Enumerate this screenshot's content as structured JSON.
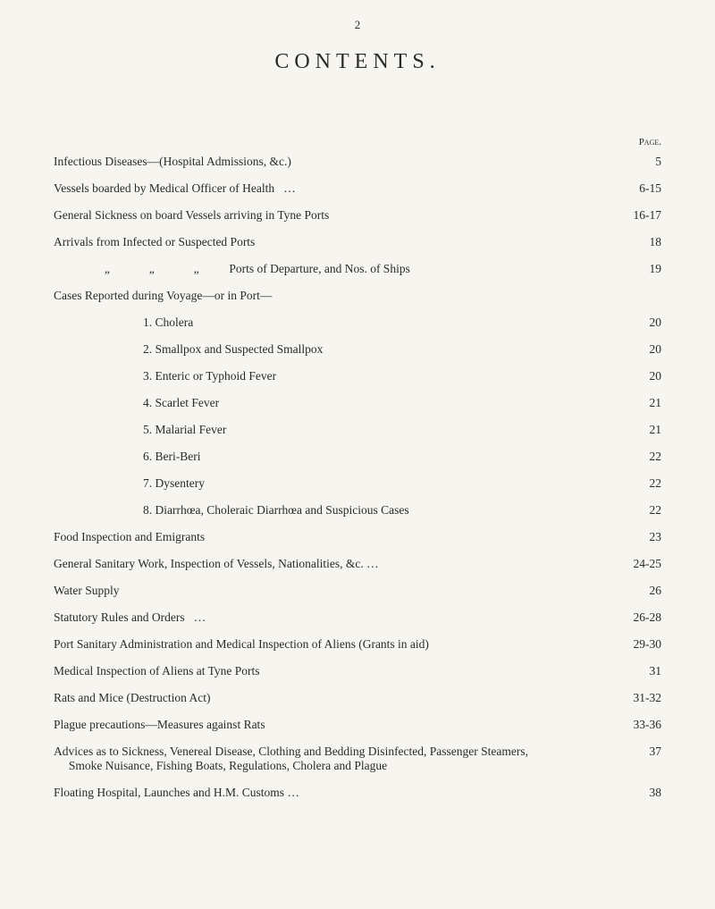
{
  "page_number": "2",
  "title": "CONTENTS.",
  "page_heading": "Page.",
  "rows": [
    {
      "label": "Infectious Diseases—(Hospital Admissions, &c.)",
      "page": "5",
      "indent": ""
    },
    {
      "label": "Vessels boarded by Medical Officer of Health   …",
      "page": "6-15",
      "indent": ""
    },
    {
      "label": "General Sickness on board Vessels arriving in Tyne Ports",
      "page": "16-17",
      "indent": ""
    },
    {
      "label": "Arrivals from Infected or Suspected Ports",
      "page": "18",
      "indent": ""
    },
    {
      "label": "     „             „             „          Ports of Departure, and Nos. of Ships",
      "page": "19",
      "indent": "indent-quote"
    },
    {
      "label": "Cases Reported during Voyage—or in Port—",
      "page": "",
      "indent": ""
    },
    {
      "label": "1. Cholera",
      "page": "20",
      "indent": "indent-1"
    },
    {
      "label": "2. Smallpox and Suspected Smallpox",
      "page": "20",
      "indent": "indent-1"
    },
    {
      "label": "3. Enteric or Typhoid Fever",
      "page": "20",
      "indent": "indent-1"
    },
    {
      "label": "4. Scarlet Fever",
      "page": "21",
      "indent": "indent-1"
    },
    {
      "label": "5. Malarial Fever",
      "page": "21",
      "indent": "indent-1"
    },
    {
      "label": "6. Beri-Beri",
      "page": "22",
      "indent": "indent-1"
    },
    {
      "label": "7. Dysentery",
      "page": "22",
      "indent": "indent-1"
    },
    {
      "label": "8. Diarrhœa, Choleraic Diarrhœa and Suspicious Cases",
      "page": "22",
      "indent": "indent-1"
    },
    {
      "label": "Food Inspection and Emigrants",
      "page": "23",
      "indent": ""
    },
    {
      "label": "General Sanitary Work, Inspection of Vessels, Nationalities, &c. …",
      "page": "24-25",
      "indent": ""
    },
    {
      "label": "Water Supply",
      "page": "26",
      "indent": ""
    },
    {
      "label": "Statutory Rules and Orders   …",
      "page": "26-28",
      "indent": ""
    },
    {
      "label": "Port Sanitary Administration and Medical Inspection of Aliens (Grants in aid)",
      "page": "29-30",
      "indent": ""
    },
    {
      "label": "Medical Inspection of Aliens at Tyne Ports",
      "page": "31",
      "indent": ""
    },
    {
      "label": "Rats and Mice (Destruction Act)",
      "page": "31-32",
      "indent": ""
    },
    {
      "label": "Plague precautions—Measures against Rats",
      "page": "33-36",
      "indent": ""
    },
    {
      "label": "Advices as to Sickness, Venereal Disease, Clothing and Bedding Disinfected, Passenger Steamers,\n     Smoke Nuisance, Fishing Boats, Regulations, Cholera and Plague",
      "page": "37",
      "indent": ""
    },
    {
      "label": "Floating Hospital, Launches and H.M. Customs …",
      "page": "38",
      "indent": ""
    }
  ]
}
